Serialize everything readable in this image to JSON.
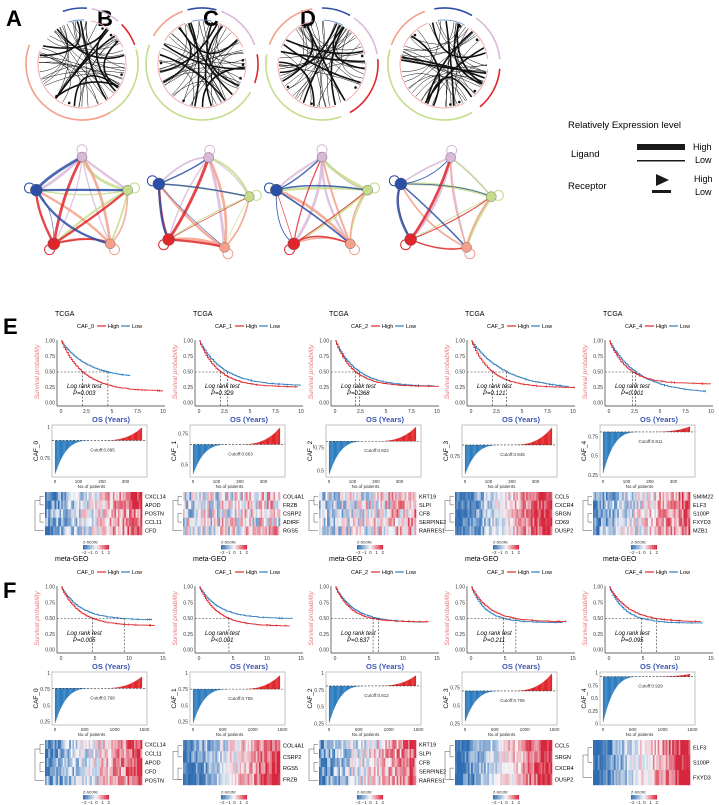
{
  "panel_labels": {
    "A": "A",
    "B": "B",
    "C": "C",
    "D": "D",
    "E": "E",
    "F": "F"
  },
  "legend": {
    "title": "Relatively Expression level",
    "ligand": "Ligand",
    "receptor": "Receptor",
    "high": "High",
    "low": "Low"
  },
  "common": {
    "high": "High",
    "low": "Low",
    "log_rank": "Log rank test",
    "xlabel_os": "OS (Years)",
    "ylabel_survival": "Survival probability",
    "xlabel_patients": "No.of patients",
    "zscore": "z-score",
    "zscore_ticks": [
      "−2",
      "−1",
      "0",
      "1",
      "2"
    ]
  },
  "colors": {
    "high": "#e0262b",
    "low": "#2e7dbf",
    "xlabel": "#3a55b0",
    "ylabel": "#e8767a",
    "heat_low": "#2f6db3",
    "heat_high": "#d7263d"
  },
  "chart_data": {
    "type": "multi",
    "cohorts": [
      {
        "name": "TCGA",
        "panel": "E",
        "xlim": [
          0,
          10
        ],
        "xticks": [
          "0",
          "2.5",
          "5",
          "7.5",
          "10"
        ],
        "xtick_values": [
          0,
          2.5,
          5,
          7.5,
          10
        ],
        "n_patients": 370,
        "patient_ticks": [
          0,
          100,
          200,
          300
        ],
        "survival": [
          {
            "group": "CAF_0",
            "p": "P=0.003",
            "high": {
              "median": 2.1,
              "plateau": 0.19,
              "end": 10
            },
            "low": {
              "median": 4.6,
              "plateau": 0.4,
              "end": 6.8
            }
          },
          {
            "group": "CAF_1",
            "p": "P=0.329",
            "high": {
              "median": 2.1,
              "plateau": 0.26,
              "end": 9.7
            },
            "low": {
              "median": 2.8,
              "plateau": 0.28,
              "end": 10
            }
          },
          {
            "group": "CAF_2",
            "p": "P=0.368",
            "high": {
              "median": 2.0,
              "plateau": 0.27,
              "end": 10.2
            },
            "low": {
              "median": 2.4,
              "plateau": 0.27,
              "end": 9.8
            }
          },
          {
            "group": "CAF_3",
            "p": "P=0.121",
            "high": {
              "median": 2.1,
              "plateau": 0.25,
              "end": 10.2
            },
            "low": {
              "median": 3.5,
              "plateau": 0.22,
              "end": 9.6
            }
          },
          {
            "group": "CAF_4",
            "p": "P=0.901",
            "high": {
              "median": 2.3,
              "plateau": 0.31,
              "end": 10
            },
            "low": {
              "median": 2.6,
              "plateau": 0.16,
              "end": 9.5
            }
          }
        ],
        "waterfall": [
          {
            "ylabel": "CAF_0",
            "cutoff": 0.895,
            "cutoff_label": "Cutoff:0.895",
            "range": [
              0.62,
              1.0
            ],
            "yticks": [
              0.75,
              1
            ]
          },
          {
            "ylabel": "CAF_1",
            "cutoff": 0.663,
            "cutoff_label": "Cutoff:0.663",
            "range": [
              0.42,
              0.8
            ],
            "yticks": [
              0.5,
              0.75
            ]
          },
          {
            "ylabel": "CAF_2",
            "cutoff": 0.822,
            "cutoff_label": "Cutoff:0.822",
            "range": [
              0.45,
              0.98
            ],
            "yticks": [
              0.5,
              0.75
            ]
          },
          {
            "ylabel": "CAF_3",
            "cutoff": 0.845,
            "cutoff_label": "Cutoff:0.845",
            "range": [
              0.6,
              0.99
            ],
            "yticks": [
              0.75
            ]
          },
          {
            "ylabel": "CAF_4",
            "cutoff": 0.811,
            "cutoff_label": "Cutoff:0.811",
            "range": [
              0.27,
              0.88
            ],
            "yticks": [
              0.25,
              0.5,
              0.75
            ]
          }
        ],
        "heatmaps": [
          {
            "genes": [
              "CXCL14",
              "APOD",
              "POSTN",
              "CCL11",
              "CFD"
            ],
            "trend": [
              0.8,
              0.7,
              0.5,
              0.6,
              0.7
            ]
          },
          {
            "genes": [
              "COL4A1",
              "FRZB",
              "CSRP2",
              "ADIRF",
              "RGS5"
            ],
            "trend": [
              0.2,
              0.15,
              0.2,
              0,
              0.15
            ]
          },
          {
            "genes": [
              "KRT19",
              "SLPI",
              "CFB",
              "SERPINE2",
              "RARRES1"
            ],
            "trend": [
              0.3,
              0.3,
              0.3,
              0.3,
              0.3
            ]
          },
          {
            "genes": [
              "CCL5",
              "CXCR4",
              "SRGN",
              "CD69",
              "DUSP2"
            ],
            "trend": [
              0.9,
              0.9,
              0.9,
              0.9,
              0.8
            ]
          },
          {
            "genes": [
              "SMIM22",
              "ELF3",
              "S100P",
              "FXYD3",
              "MZB1"
            ],
            "trend": [
              0.6,
              0.6,
              0.6,
              0.6,
              0.5
            ]
          }
        ]
      },
      {
        "name": "meta-GEO",
        "panel": "F",
        "xlim": [
          0,
          15
        ],
        "xticks": [
          "0",
          "5",
          "10",
          "15"
        ],
        "xtick_values": [
          0,
          5,
          10,
          15
        ],
        "n_patients": 1460,
        "patient_ticks": [
          0,
          500,
          1000,
          1500
        ],
        "survival": [
          {
            "group": "CAF_0",
            "p": "P=0.005",
            "high": {
              "median": 4.6,
              "plateau": 0.39,
              "end": 13.8
            },
            "low": {
              "median": 9.3,
              "plateau": 0.48,
              "end": 13.3
            }
          },
          {
            "group": "CAF_1",
            "p": "P<0.001",
            "high": {
              "median": 4.4,
              "plateau": 0.38,
              "end": 13.3
            },
            "low": {
              "median": null,
              "plateau": 0.5,
              "end": 13.8
            }
          },
          {
            "group": "CAF_2",
            "p": "P=0.637",
            "high": {
              "median": 5.6,
              "plateau": 0.45,
              "end": 13.8
            },
            "low": {
              "median": 6.4,
              "plateau": 0.44,
              "end": 13.3
            }
          },
          {
            "group": "CAF_3",
            "p": "P=0.211",
            "high": {
              "median": 6.6,
              "plateau": 0.45,
              "end": 14
            },
            "low": {
              "median": 4.8,
              "plateau": 0.44,
              "end": 13.5
            }
          },
          {
            "group": "CAF_4",
            "p": "P=0.095",
            "high": {
              "median": 7.0,
              "plateau": 0.45,
              "end": 13.5
            },
            "low": {
              "median": 4.8,
              "plateau": 0.43,
              "end": 13.8
            }
          }
        ],
        "waterfall": [
          {
            "ylabel": "CAF_0",
            "cutoff": 0.768,
            "cutoff_label": "Cutoff:0.768",
            "range": [
              0.22,
              0.95
            ],
            "yticks": [
              0.25,
              0.5,
              0.75,
              1
            ]
          },
          {
            "ylabel": "CAF_1",
            "cutoff": 0.755,
            "cutoff_label": "Cutoff:0.755",
            "range": [
              0.22,
              0.97
            ],
            "yticks": [
              0.25,
              0.5,
              0.75,
              1
            ]
          },
          {
            "ylabel": "CAF_2",
            "cutoff": 0.812,
            "cutoff_label": "Cutoff:0.812",
            "range": [
              0.25,
              0.97
            ],
            "yticks": [
              0.25,
              0.5,
              0.75,
              1
            ]
          },
          {
            "ylabel": "CAF_3",
            "cutoff": 0.706,
            "cutoff_label": "Cutoff:0.706",
            "range": [
              0.27,
              0.95
            ],
            "yticks": [
              0.25,
              0.5,
              0.75
            ]
          },
          {
            "ylabel": "CAF_4",
            "cutoff": 0.929,
            "cutoff_label": "Cutoff:0.929",
            "range": [
              0.02,
              0.98
            ],
            "yticks": [
              0,
              0.25,
              0.5,
              0.75,
              1
            ]
          }
        ],
        "heatmaps": [
          {
            "genes": [
              "CXCL14",
              "CCL11",
              "APOD",
              "CFD",
              "POSTN"
            ],
            "trend": [
              0.7,
              0.7,
              0.7,
              0.7,
              0.6
            ]
          },
          {
            "genes": [
              "COL4A1",
              "CSRP2",
              "RGS5",
              "FRZB"
            ],
            "trend": [
              0.8,
              0.8,
              0.9,
              0.9
            ]
          },
          {
            "genes": [
              "KRT19",
              "SLPI",
              "CFB",
              "SERPINE2",
              "RARRES1"
            ],
            "trend": [
              0.6,
              0.6,
              0.6,
              0.6,
              0.7
            ]
          },
          {
            "genes": [
              "CCL5",
              "SRGN",
              "CXCR4",
              "DUSP2"
            ],
            "trend": [
              0.9,
              0.9,
              0.9,
              0.9
            ]
          },
          {
            "genes": [
              "ELF3",
              "S100P",
              "FXYD3"
            ],
            "trend": [
              0.9,
              0.9,
              1.0
            ]
          }
        ]
      }
    ]
  }
}
